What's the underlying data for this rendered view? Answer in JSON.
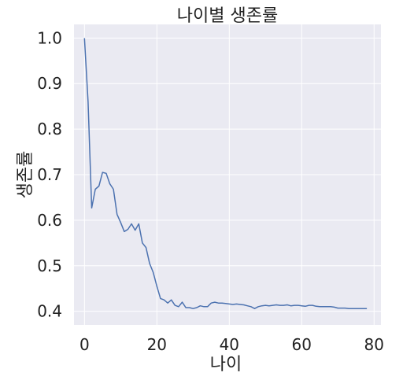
{
  "chart_data": {
    "type": "line",
    "title": "나이별 생존률",
    "xlabel": "나이",
    "ylabel": "생존률",
    "xlim": [
      -2.9,
      81.9
    ],
    "ylim": [
      0.37,
      1.03
    ],
    "xticks": [
      0,
      20,
      40,
      60,
      80
    ],
    "yticks": [
      0.4,
      0.5,
      0.6,
      0.7,
      0.8,
      0.9,
      1.0
    ],
    "xtick_labels": [
      "0",
      "20",
      "40",
      "60",
      "80"
    ],
    "ytick_labels": [
      "0.4",
      "0.5",
      "0.6",
      "0.7",
      "0.8",
      "0.9",
      "1.0"
    ],
    "grid": true,
    "background": "#eaeaf2",
    "line_color": "#4c72b0",
    "series": [
      {
        "x": [
          0,
          1,
          2,
          3,
          4,
          5,
          6,
          7,
          8,
          9,
          10,
          11,
          12,
          13,
          14,
          15,
          16,
          17,
          18,
          19,
          20,
          21,
          22,
          23,
          24,
          25,
          26,
          27,
          28,
          29,
          30,
          31,
          32,
          33,
          34,
          35,
          36,
          37,
          38,
          39,
          40,
          41,
          42,
          43,
          44,
          45,
          46,
          47,
          48,
          49,
          50,
          51,
          52,
          53,
          54,
          55,
          56,
          57,
          58,
          59,
          60,
          61,
          62,
          63,
          64,
          65,
          66,
          67,
          68,
          69,
          70,
          71,
          72,
          73,
          74,
          75,
          76,
          77,
          78
        ],
        "y": [
          1.0,
          0.86,
          0.627,
          0.668,
          0.675,
          0.705,
          0.703,
          0.68,
          0.668,
          0.613,
          0.595,
          0.575,
          0.58,
          0.592,
          0.578,
          0.592,
          0.55,
          0.54,
          0.505,
          0.485,
          0.455,
          0.428,
          0.425,
          0.418,
          0.425,
          0.413,
          0.41,
          0.42,
          0.408,
          0.408,
          0.406,
          0.408,
          0.412,
          0.41,
          0.41,
          0.418,
          0.42,
          0.418,
          0.418,
          0.417,
          0.416,
          0.415,
          0.416,
          0.415,
          0.414,
          0.412,
          0.41,
          0.406,
          0.41,
          0.412,
          0.413,
          0.412,
          0.413,
          0.414,
          0.413,
          0.413,
          0.414,
          0.412,
          0.413,
          0.413,
          0.412,
          0.411,
          0.413,
          0.413,
          0.411,
          0.41,
          0.41,
          0.41,
          0.41,
          0.409,
          0.407,
          0.407,
          0.407,
          0.406,
          0.406,
          0.406,
          0.406,
          0.406,
          0.406
        ]
      }
    ]
  }
}
